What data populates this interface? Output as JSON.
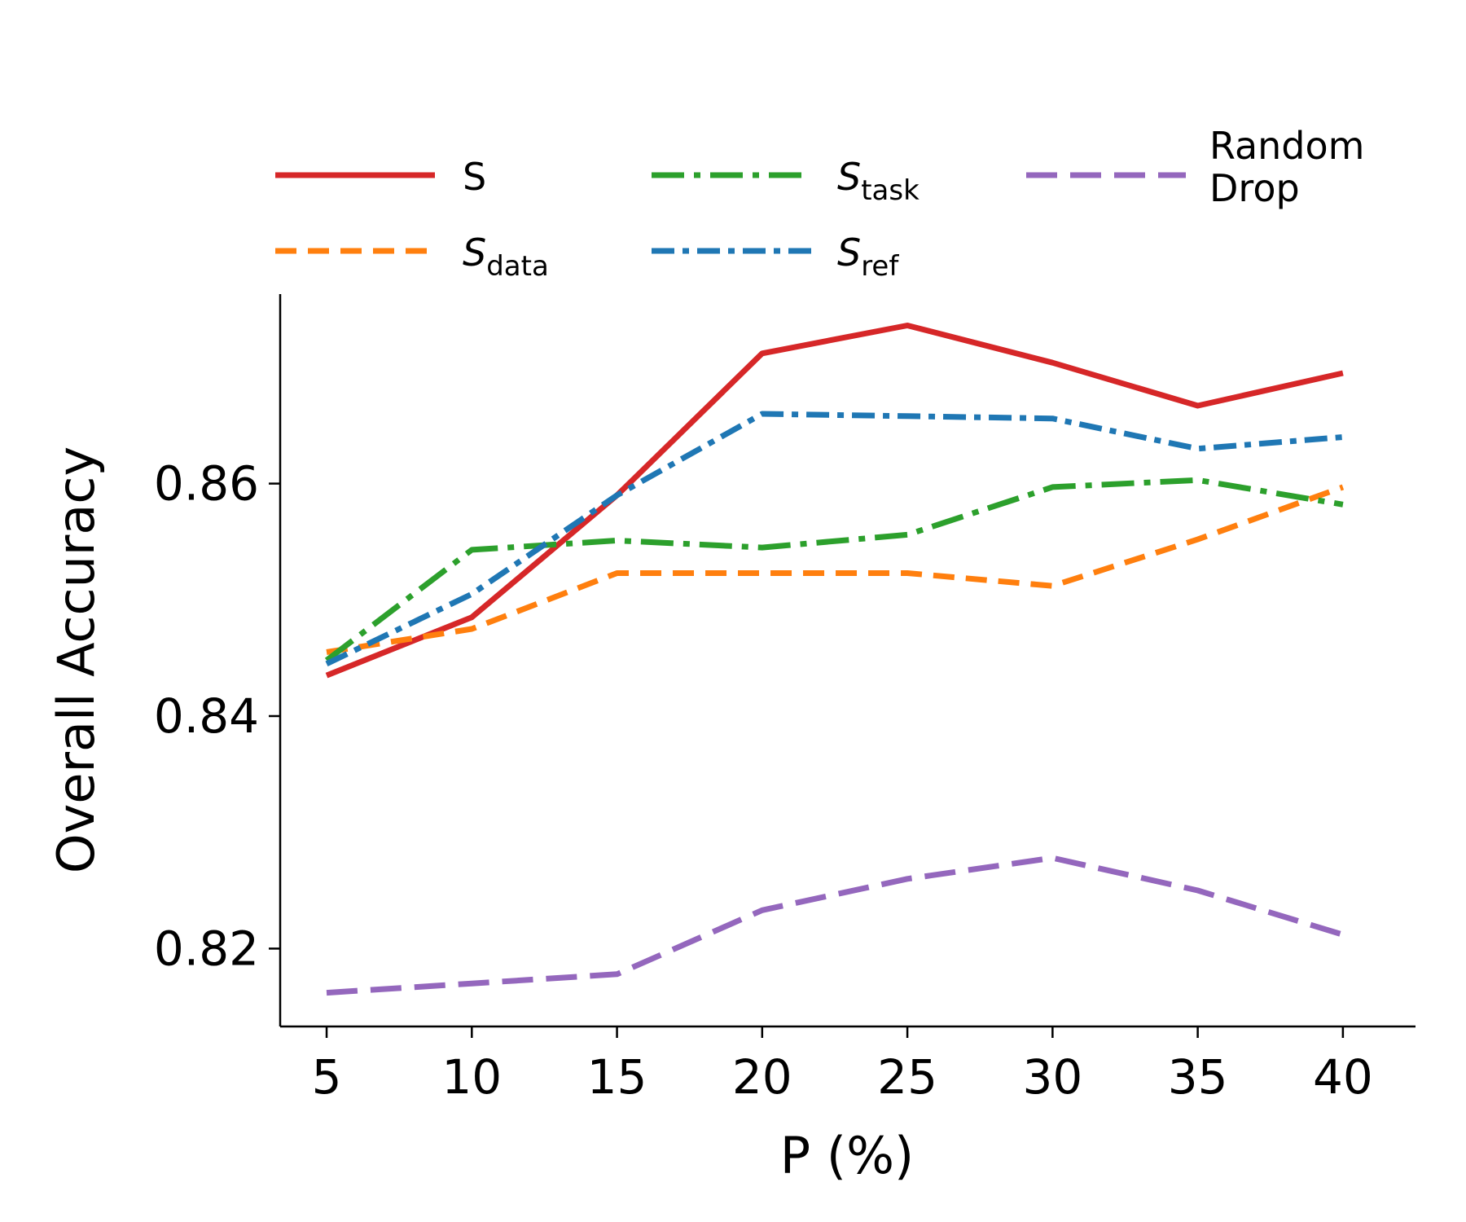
{
  "chart_data": {
    "type": "line",
    "title": "",
    "xlabel": "P (%)",
    "ylabel": "Overall Accuracy",
    "x": [
      5,
      10,
      15,
      20,
      25,
      30,
      35,
      40
    ],
    "xticks": [
      "5",
      "10",
      "15",
      "20",
      "25",
      "30",
      "35",
      "40"
    ],
    "yticks": [
      "0.82",
      "0.84",
      "0.86"
    ],
    "ytick_values": [
      0.82,
      0.84,
      0.86
    ],
    "xlim": [
      3.4,
      42.5
    ],
    "ylim": [
      0.8133,
      0.8763
    ],
    "grid": false,
    "legend_position": "top",
    "series": [
      {
        "id": "s",
        "name": "S",
        "name_base": "S",
        "name_sub": "",
        "color": "#d62728",
        "dash": "",
        "values": [
          0.8435,
          0.8485,
          0.859,
          0.8712,
          0.8736,
          0.8704,
          0.8667,
          0.8695
        ]
      },
      {
        "id": "sdata",
        "name": "S_data",
        "name_base": "S",
        "name_sub": "data",
        "color": "#ff7f0e",
        "dash": "26,14",
        "values": [
          0.8455,
          0.8475,
          0.8523,
          0.8523,
          0.8523,
          0.8512,
          0.8552,
          0.8597
        ]
      },
      {
        "id": "stask",
        "name": "S_task",
        "name_base": "S",
        "name_sub": "task",
        "color": "#2ca02c",
        "dash": "40,12,8,12",
        "values": [
          0.8448,
          0.8543,
          0.8551,
          0.8545,
          0.8556,
          0.8597,
          0.8603,
          0.8582
        ]
      },
      {
        "id": "sref",
        "name": "S_ref",
        "name_base": "S",
        "name_sub": "ref",
        "color": "#1f77b4",
        "dash": "28,10,8,10",
        "values": [
          0.8445,
          0.8505,
          0.859,
          0.866,
          0.8658,
          0.8656,
          0.863,
          0.864
        ]
      },
      {
        "id": "random",
        "name": "Random Drop",
        "name_lines": [
          "Random",
          "Drop"
        ],
        "color": "#9467bd",
        "dash": "38,16",
        "values": [
          0.8162,
          0.817,
          0.8178,
          0.8233,
          0.826,
          0.8278,
          0.825,
          0.8212
        ]
      }
    ]
  }
}
